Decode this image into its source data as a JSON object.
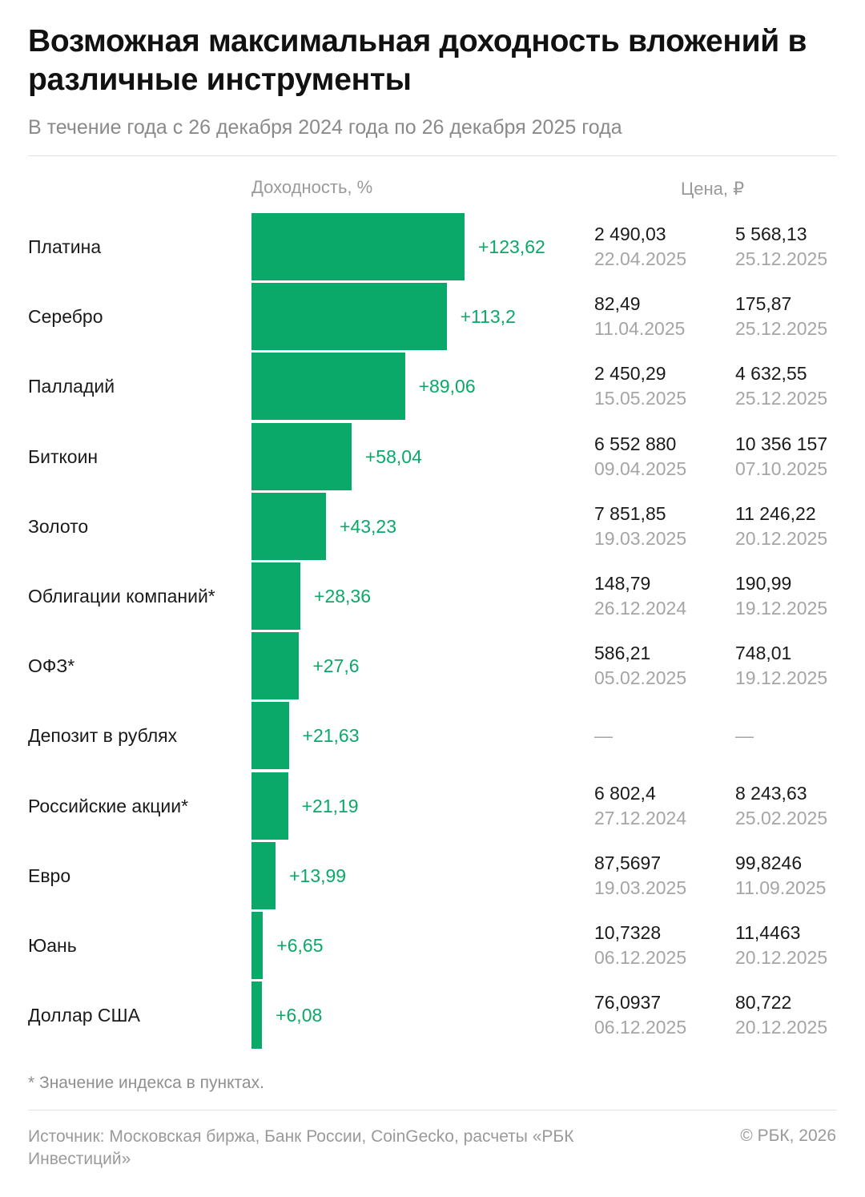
{
  "title": "Возможная максимальная доходность вложений в различные инструменты",
  "subtitle": "В течение года с 26 декабря 2024 года по 26 декабря 2025 года",
  "headers": {
    "yield": "Доходность, %",
    "price": "Цена, ₽"
  },
  "footnote": "* Значение индекса в пунктах.",
  "source": "Источник: Московская биржа, Банк России, CoinGecko, расчеты «РБК Инвестиций»",
  "copyright": "© РБК, 2026",
  "colors": {
    "bar": "#0aa869",
    "value": "#0aa869",
    "muted": "#a5a5a5"
  },
  "chart_data": {
    "type": "bar",
    "orientation": "horizontal",
    "categories": [
      "Платина",
      "Серебро",
      "Палладий",
      "Биткоин",
      "Золото",
      "Облигации компаний*",
      "ОФЗ*",
      "Депозит в рублях",
      "Российские акции*",
      "Евро",
      "Юань",
      "Доллар США"
    ],
    "values": [
      123.62,
      113.2,
      89.06,
      58.04,
      43.23,
      28.36,
      27.6,
      21.63,
      21.19,
      13.99,
      6.65,
      6.08
    ],
    "value_labels": [
      "+123,62",
      "+113,2",
      "+89,06",
      "+58,04",
      "+43,23",
      "+28,36",
      "+27,6",
      "+21,63",
      "+21,19",
      "+13,99",
      "+6,65",
      "+6,08"
    ],
    "xlim": [
      0,
      123.62
    ],
    "grid": false,
    "prices": [
      {
        "min_price": "2 490,03",
        "min_date": "22.04.2025",
        "max_price": "5 568,13",
        "max_date": "25.12.2025"
      },
      {
        "min_price": "82,49",
        "min_date": "11.04.2025",
        "max_price": "175,87",
        "max_date": "25.12.2025"
      },
      {
        "min_price": "2 450,29",
        "min_date": "15.05.2025",
        "max_price": "4 632,55",
        "max_date": "25.12.2025"
      },
      {
        "min_price": "6 552 880",
        "min_date": "09.04.2025",
        "max_price": "10 356 157",
        "max_date": "07.10.2025"
      },
      {
        "min_price": "7 851,85",
        "min_date": "19.03.2025",
        "max_price": "11 246,22",
        "max_date": "20.12.2025"
      },
      {
        "min_price": "148,79",
        "min_date": "26.12.2024",
        "max_price": "190,99",
        "max_date": "19.12.2025"
      },
      {
        "min_price": "586,21",
        "min_date": "05.02.2025",
        "max_price": "748,01",
        "max_date": "19.12.2025"
      },
      {
        "min_price": "—",
        "min_date": "",
        "max_price": "—",
        "max_date": ""
      },
      {
        "min_price": "6 802,4",
        "min_date": "27.12.2024",
        "max_price": "8 243,63",
        "max_date": "25.02.2025"
      },
      {
        "min_price": "87,5697",
        "min_date": "19.03.2025",
        "max_price": "99,8246",
        "max_date": "11.09.2025"
      },
      {
        "min_price": "10,7328",
        "min_date": "06.12.2025",
        "max_price": "11,4463",
        "max_date": "20.12.2025"
      },
      {
        "min_price": "76,0937",
        "min_date": "06.12.2025",
        "max_price": "80,722",
        "max_date": "20.12.2025"
      }
    ]
  }
}
